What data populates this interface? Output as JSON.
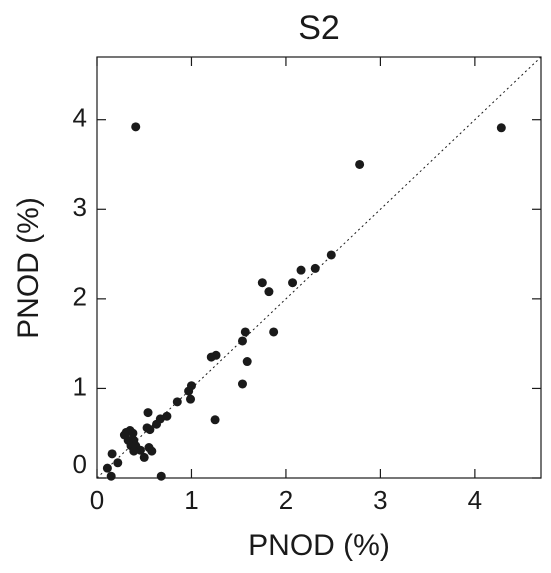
{
  "chart_data": {
    "type": "scatter",
    "title": "S2",
    "xlabel": "PNOD (%)",
    "ylabel": "PNOD (%)",
    "color": "#1a1a1a",
    "xlim": [
      0,
      4.7
    ],
    "ylim": [
      0,
      4.7
    ],
    "xticks": [
      0,
      1,
      2,
      3,
      4
    ],
    "yticks": [
      0,
      1,
      2,
      3,
      4
    ],
    "identity_line": true,
    "x": [
      0.41,
      4.28,
      2.78,
      2.16,
      2.31,
      2.48,
      2.07,
      1.75,
      1.82,
      1.87,
      1.54,
      1.57,
      1.26,
      1.21,
      1.59,
      1.54,
      1.25,
      1.0,
      0.97,
      0.99,
      0.85,
      0.74,
      0.67,
      0.63,
      0.54,
      0.53,
      0.56,
      0.46,
      0.55,
      0.58,
      0.35,
      0.31,
      0.29,
      0.38,
      0.33,
      0.39,
      0.36,
      0.41,
      0.39,
      0.5,
      0.22,
      0.16,
      0.11,
      0.15,
      0.68
    ],
    "values": [
      3.92,
      3.91,
      3.5,
      2.32,
      2.34,
      2.49,
      2.18,
      2.18,
      2.08,
      1.63,
      1.53,
      1.63,
      1.37,
      1.35,
      1.3,
      1.05,
      0.65,
      1.03,
      0.97,
      0.88,
      0.85,
      0.69,
      0.66,
      0.6,
      0.73,
      0.56,
      0.54,
      0.31,
      0.34,
      0.3,
      0.53,
      0.51,
      0.48,
      0.5,
      0.42,
      0.42,
      0.36,
      0.36,
      0.3,
      0.23,
      0.17,
      0.27,
      0.11,
      0.02,
      0.02
    ]
  }
}
